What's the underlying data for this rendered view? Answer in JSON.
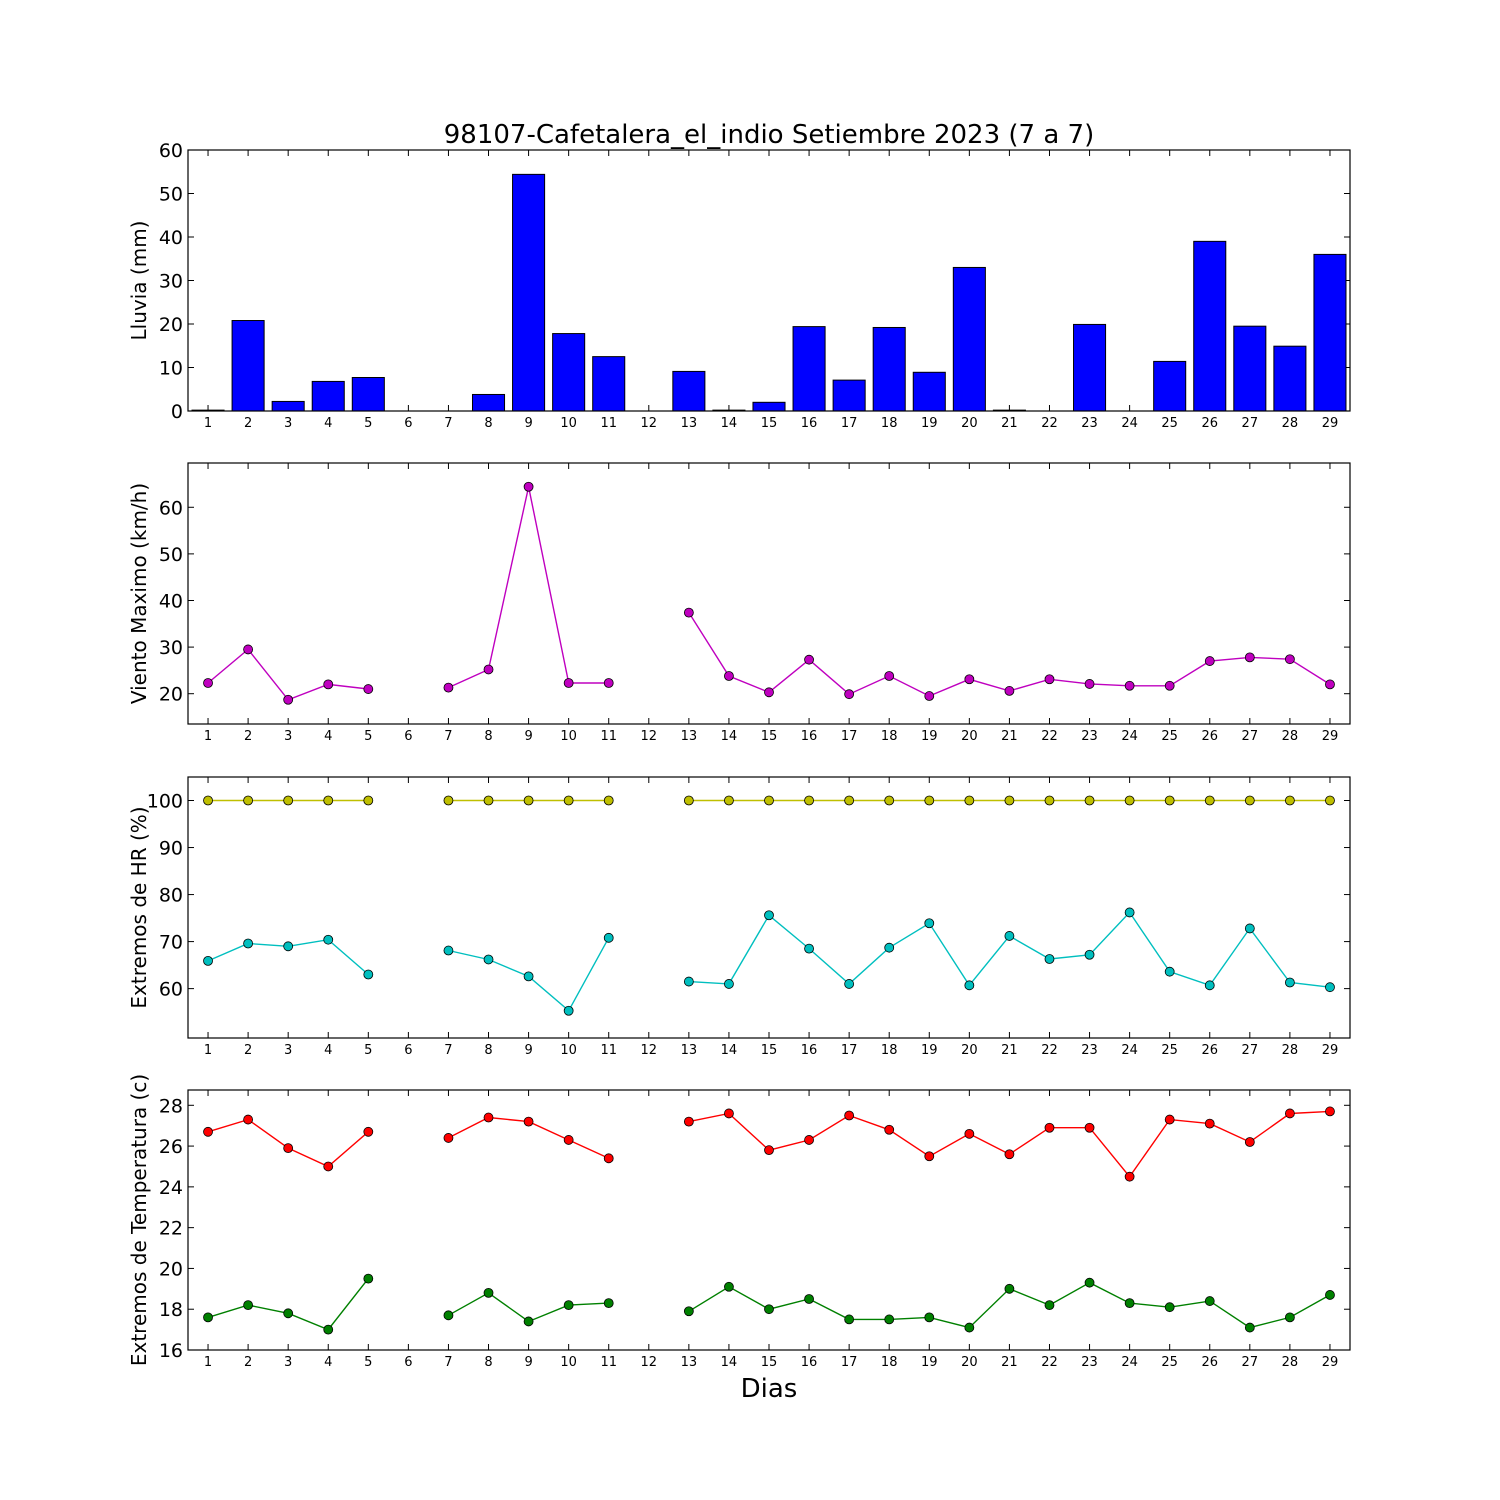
{
  "figure": {
    "title": "98107-Cafetalera_el_indio Setiembre 2023  (7 a 7)",
    "xlabel": "Dias"
  },
  "chart_data": [
    {
      "type": "bar",
      "ylabel": "Lluvia (mm)",
      "ylim": [
        0,
        60
      ],
      "yticks": [
        0,
        10,
        20,
        30,
        40,
        50,
        60
      ],
      "categories": [
        1,
        2,
        3,
        4,
        5,
        6,
        7,
        8,
        9,
        10,
        11,
        12,
        13,
        14,
        15,
        16,
        17,
        18,
        19,
        20,
        21,
        22,
        23,
        24,
        25,
        26,
        27,
        28,
        29
      ],
      "values": [
        0.2,
        20.8,
        2.2,
        6.8,
        7.7,
        0,
        0,
        3.8,
        54.4,
        17.8,
        12.5,
        0,
        9.1,
        0.2,
        2.0,
        19.4,
        7.1,
        19.2,
        8.9,
        33.0,
        0.2,
        0,
        19.9,
        0,
        11.4,
        39.0,
        19.5,
        14.9,
        36.0
      ],
      "color": "#0000ff"
    },
    {
      "type": "line",
      "ylabel": "Viento Maximo (km/h)",
      "ylim": [
        13.5,
        69.5
      ],
      "yticks": [
        20,
        30,
        40,
        50,
        60
      ],
      "x": [
        1,
        2,
        3,
        4,
        5,
        6,
        7,
        8,
        9,
        10,
        11,
        12,
        13,
        14,
        15,
        16,
        17,
        18,
        19,
        20,
        21,
        22,
        23,
        24,
        25,
        26,
        27,
        28,
        29
      ],
      "series": [
        {
          "color": "#bf00bf",
          "values": [
            22.3,
            29.5,
            18.7,
            22.0,
            21.0,
            null,
            21.3,
            25.2,
            64.4,
            22.3,
            22.3,
            null,
            37.4,
            23.8,
            20.3,
            27.3,
            19.9,
            23.8,
            19.5,
            23.1,
            20.6,
            23.1,
            22.1,
            21.7,
            21.7,
            27.0,
            27.8,
            27.4,
            22.0
          ]
        }
      ]
    },
    {
      "type": "line",
      "ylabel": "Extremos de HR (%)",
      "ylim": [
        49.5,
        105
      ],
      "yticks": [
        60,
        70,
        80,
        90,
        100
      ],
      "x": [
        1,
        2,
        3,
        4,
        5,
        6,
        7,
        8,
        9,
        10,
        11,
        12,
        13,
        14,
        15,
        16,
        17,
        18,
        19,
        20,
        21,
        22,
        23,
        24,
        25,
        26,
        27,
        28,
        29
      ],
      "series": [
        {
          "color": "#bfbf00",
          "values": [
            100,
            100,
            100,
            100,
            100,
            null,
            100,
            100,
            100,
            100,
            100,
            null,
            100,
            100,
            100,
            100,
            100,
            100,
            100,
            100,
            100,
            100,
            100,
            100,
            100,
            100,
            100,
            100,
            100
          ]
        },
        {
          "color": "#00bfbf",
          "values": [
            65.9,
            69.6,
            69.0,
            70.4,
            63.0,
            null,
            68.1,
            66.2,
            62.6,
            55.3,
            70.8,
            null,
            61.5,
            61.0,
            75.6,
            68.5,
            61.0,
            68.7,
            73.9,
            60.7,
            71.2,
            66.3,
            67.2,
            76.2,
            63.6,
            60.7,
            72.8,
            61.3,
            60.3
          ]
        }
      ]
    },
    {
      "type": "line",
      "ylabel": "Extremos de Temperatura (c)",
      "ylim": [
        16,
        28.75
      ],
      "yticks": [
        16,
        18,
        20,
        22,
        24,
        26,
        28
      ],
      "x": [
        1,
        2,
        3,
        4,
        5,
        6,
        7,
        8,
        9,
        10,
        11,
        12,
        13,
        14,
        15,
        16,
        17,
        18,
        19,
        20,
        21,
        22,
        23,
        24,
        25,
        26,
        27,
        28,
        29
      ],
      "series": [
        {
          "color": "#ff0000",
          "values": [
            26.7,
            27.3,
            25.9,
            25.0,
            26.7,
            null,
            26.4,
            27.4,
            27.2,
            26.3,
            25.4,
            null,
            27.2,
            27.6,
            25.8,
            26.3,
            27.5,
            26.8,
            25.5,
            26.6,
            25.6,
            26.9,
            26.9,
            24.5,
            27.3,
            27.1,
            26.2,
            27.6,
            27.7
          ]
        },
        {
          "color": "#008000",
          "values": [
            17.6,
            18.2,
            17.8,
            17.0,
            19.5,
            null,
            17.7,
            18.8,
            17.4,
            18.2,
            18.3,
            null,
            17.9,
            19.1,
            18.0,
            18.5,
            17.5,
            17.5,
            17.6,
            17.1,
            19.0,
            18.2,
            19.3,
            18.3,
            18.1,
            18.4,
            17.1,
            17.6,
            18.7
          ]
        }
      ]
    }
  ]
}
